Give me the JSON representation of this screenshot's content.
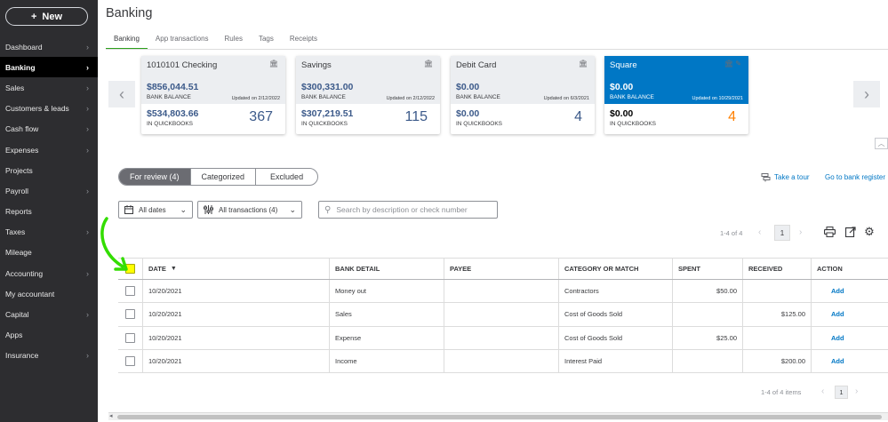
{
  "sidebar": {
    "new_label": "New",
    "items": [
      {
        "label": "Dashboard",
        "chevron": true
      },
      {
        "label": "Banking",
        "chevron": true,
        "active": true
      },
      {
        "label": "Sales",
        "chevron": true
      },
      {
        "label": "Customers & leads",
        "chevron": true
      },
      {
        "label": "Cash flow",
        "chevron": true
      },
      {
        "label": "Expenses",
        "chevron": true
      },
      {
        "label": "Projects",
        "chevron": false
      },
      {
        "label": "Payroll",
        "chevron": true
      },
      {
        "label": "Reports",
        "chevron": false
      },
      {
        "label": "Taxes",
        "chevron": true
      },
      {
        "label": "Mileage",
        "chevron": false
      },
      {
        "label": "Accounting",
        "chevron": true
      },
      {
        "label": "My accountant",
        "chevron": false
      },
      {
        "label": "Capital",
        "chevron": true
      },
      {
        "label": "Apps",
        "chevron": false
      },
      {
        "label": "Insurance",
        "chevron": true
      }
    ]
  },
  "header": {
    "title": "Banking",
    "tabs": [
      "Banking",
      "App transactions",
      "Rules",
      "Tags",
      "Receipts"
    ]
  },
  "accounts": [
    {
      "name": "1010101 Checking",
      "bank_balance": "$856,044.51",
      "bank_label": "BANK BALANCE",
      "updated": "Updated on 2/12/2022",
      "qb_balance": "$534,803.66",
      "qb_label": "IN QUICKBOOKS",
      "count": "367"
    },
    {
      "name": "Savings",
      "bank_balance": "$300,331.00",
      "bank_label": "BANK BALANCE",
      "updated": "Updated on 2/12/2022",
      "qb_balance": "$307,219.51",
      "qb_label": "IN QUICKBOOKS",
      "count": "115"
    },
    {
      "name": "Debit Card",
      "bank_balance": "$0.00",
      "bank_label": "BANK BALANCE",
      "updated": "Updated on 6/3/2021",
      "qb_balance": "$0.00",
      "qb_label": "IN QUICKBOOKS",
      "count": "4"
    },
    {
      "name": "Square",
      "bank_balance": "$0.00",
      "bank_label": "BANK BALANCE",
      "updated": "Updated on 10/29/2021",
      "qb_balance": "$0.00",
      "qb_label": "IN QUICKBOOKS",
      "count": "4",
      "selected": true
    }
  ],
  "review_tabs": [
    "For review (4)",
    "Categorized",
    "Excluded"
  ],
  "links": {
    "tour": "Take a tour",
    "goto": "Go to bank register"
  },
  "filters": {
    "dates": "All dates",
    "transactions": "All transactions (4)",
    "search_placeholder": "Search by description or check number"
  },
  "pager": {
    "top_range": "1-4 of 4",
    "page": "1",
    "bottom_range": "1-4 of 4 items"
  },
  "table": {
    "columns": [
      "DATE",
      "BANK DETAIL",
      "PAYEE",
      "CATEGORY OR MATCH",
      "SPENT",
      "RECEIVED",
      "ACTION"
    ],
    "rows": [
      {
        "date": "10/20/2021",
        "detail": "Money out",
        "payee": "",
        "category": "Contractors",
        "spent": "$50.00",
        "received": "",
        "action": "Add"
      },
      {
        "date": "10/20/2021",
        "detail": "Sales",
        "payee": "",
        "category": "Cost of Goods Sold",
        "spent": "",
        "received": "$125.00",
        "action": "Add"
      },
      {
        "date": "10/20/2021",
        "detail": "Expense",
        "payee": "",
        "category": "Cost of Goods Sold",
        "spent": "$25.00",
        "received": "",
        "action": "Add"
      },
      {
        "date": "10/20/2021",
        "detail": "Income",
        "payee": "",
        "category": "Interest Paid",
        "spent": "",
        "received": "$200.00",
        "action": "Add"
      }
    ]
  },
  "colors": {
    "accent_green": "#2ca01c",
    "link_blue": "#0077c5",
    "selected_card": "#0077c5",
    "highlight_yellow": "#ffff00",
    "annotation_arrow": "#33dd00",
    "count_orange": "#ff8000"
  }
}
